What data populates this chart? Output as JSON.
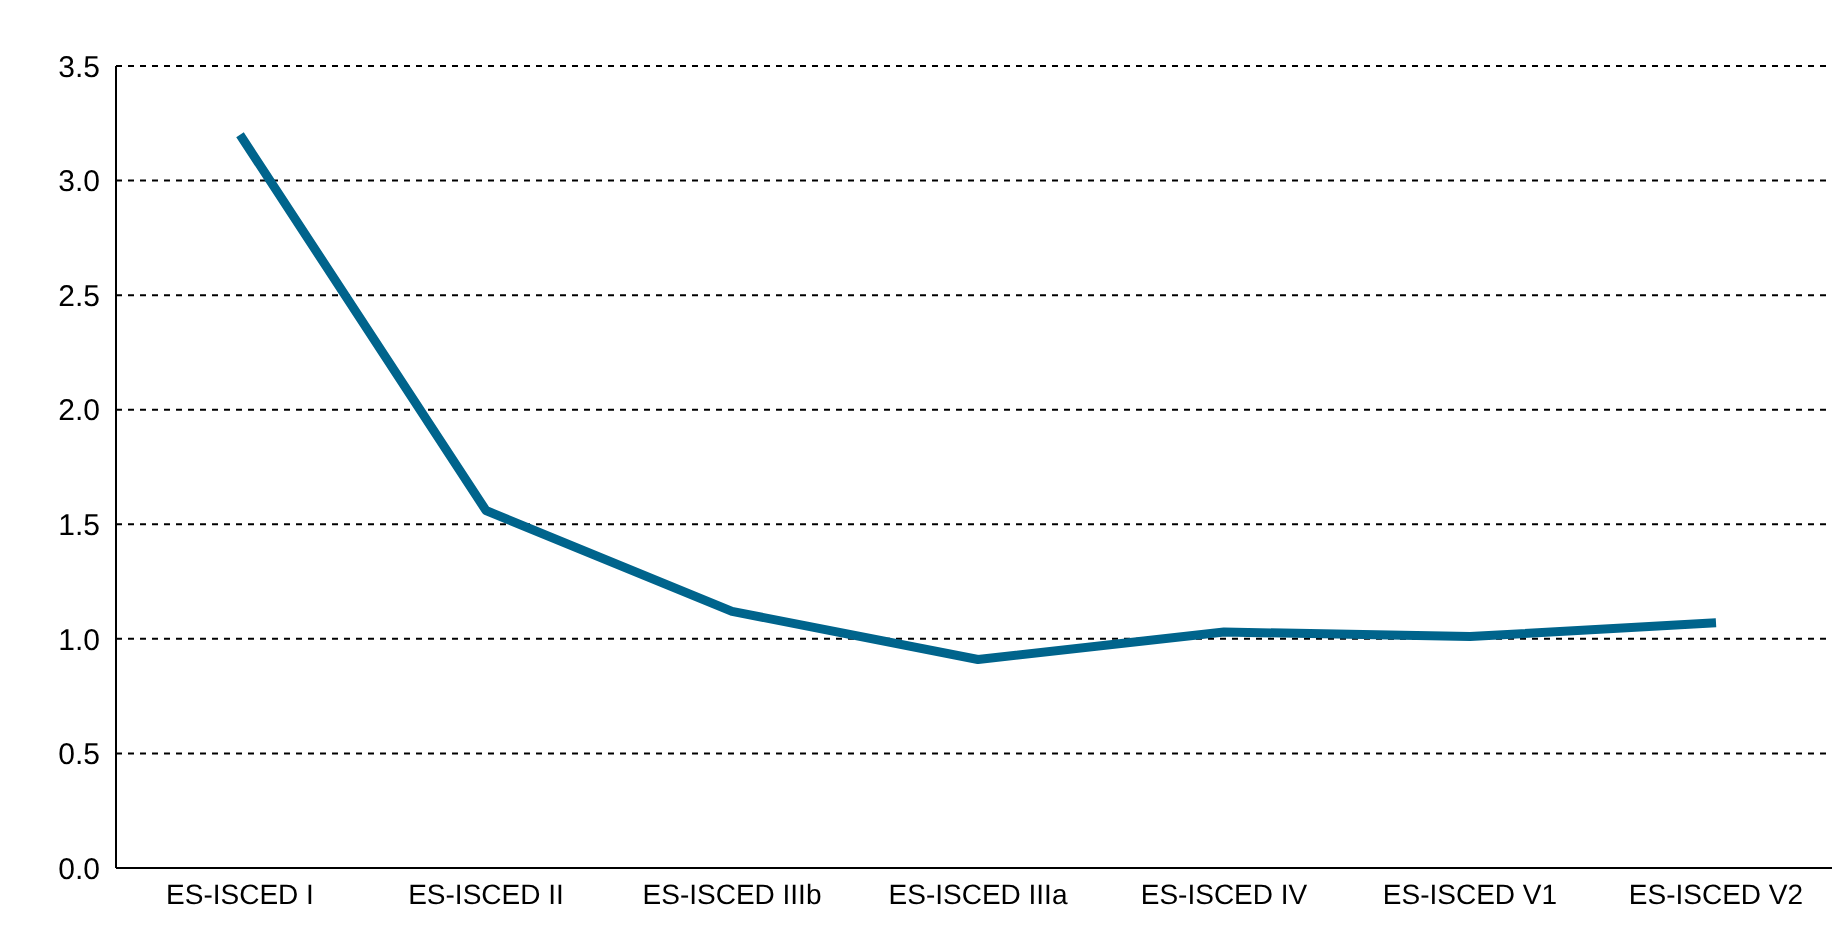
{
  "chart_data": {
    "type": "line",
    "categories": [
      "ES-ISCED I",
      "ES-ISCED II",
      "ES-ISCED IIIb",
      "ES-ISCED IIIa",
      "ES-ISCED IV",
      "ES-ISCED V1",
      "ES-ISCED V2"
    ],
    "series": [
      {
        "color": "#00648c",
        "values": [
          3.2,
          1.56,
          1.12,
          0.91,
          1.03,
          1.01,
          1.07
        ]
      }
    ],
    "ylim": [
      0,
      3.5
    ],
    "yticks": [
      {
        "value": 0,
        "label": "0.0"
      },
      {
        "value": 0.5,
        "label": "0.5"
      },
      {
        "value": 1,
        "label": "1.0"
      },
      {
        "value": 1.5,
        "label": "1.5"
      },
      {
        "value": 2,
        "label": "2.0"
      },
      {
        "value": 2.5,
        "label": "2.5"
      },
      {
        "value": 3,
        "label": "3.0"
      },
      {
        "value": 3.5,
        "label": "3.5"
      }
    ],
    "grid": "y",
    "legend": false,
    "marker": "none",
    "line_style": "solid"
  }
}
